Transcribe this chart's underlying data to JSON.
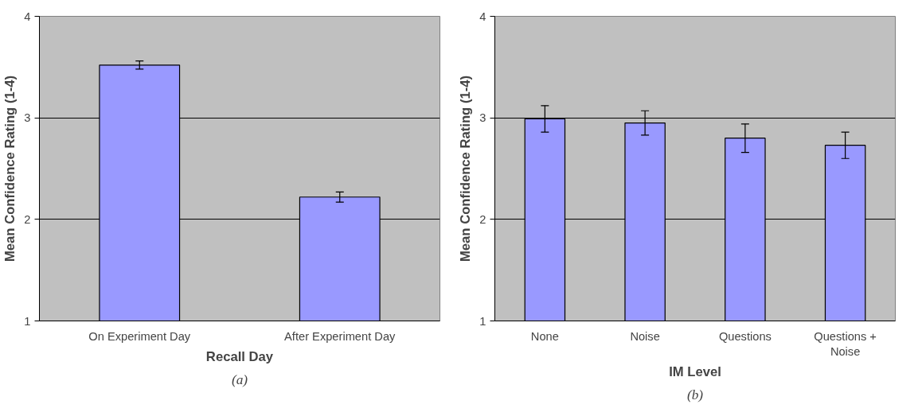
{
  "chart_data": [
    {
      "type": "bar",
      "xlabel": "Recall Day",
      "ylabel": "Mean Confidence Rating (1-4)",
      "categories": [
        "On Experiment Day",
        "After Experiment Day"
      ],
      "values": [
        3.52,
        2.22
      ],
      "errors": [
        0.04,
        0.05
      ],
      "color": "#9999ff",
      "ylim": [
        1,
        4
      ],
      "yticks": [
        1,
        2,
        3,
        4
      ],
      "grid": "y",
      "annotations": [
        "(a)"
      ]
    },
    {
      "type": "bar",
      "xlabel": "IM Level",
      "ylabel": "Mean Confidence Rating (1-4)",
      "categories": [
        "None",
        "Noise",
        "Questions",
        "Questions + Noise"
      ],
      "values": [
        2.99,
        2.95,
        2.8,
        2.73
      ],
      "errors": [
        0.13,
        0.12,
        0.14,
        0.13
      ],
      "color": "#9999ff",
      "ylim": [
        1,
        4
      ],
      "yticks": [
        1,
        2,
        3,
        4
      ],
      "grid": "y",
      "annotations": [
        "(b)"
      ]
    }
  ]
}
